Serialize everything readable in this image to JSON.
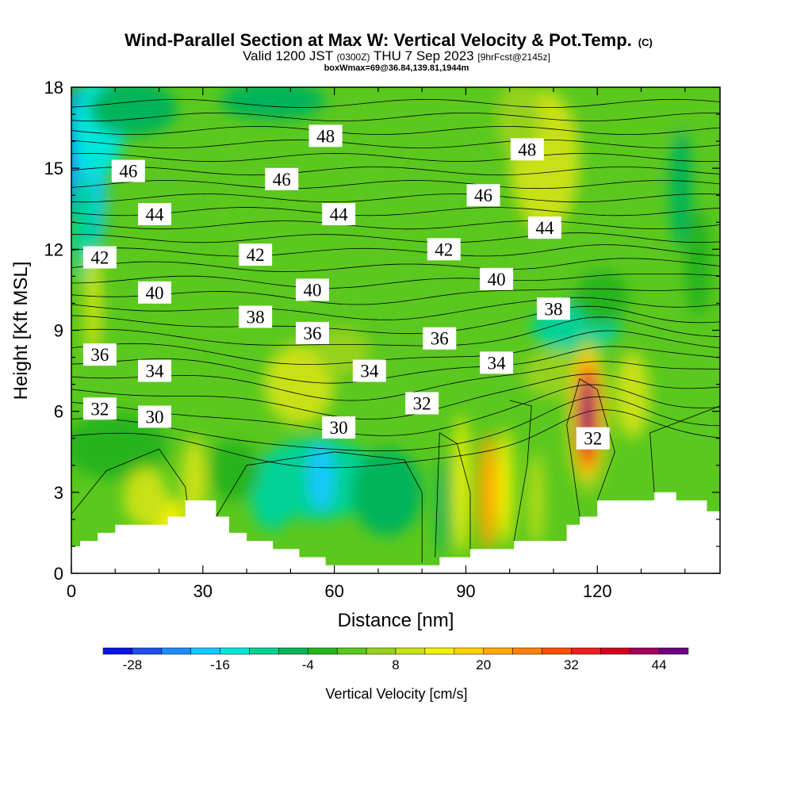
{
  "title": "Wind-Parallel Section at Max W: Vertical Velocity & Pot.Temp.",
  "title_mark": "(C)",
  "subtitle_parts": [
    "Valid 1200 JST",
    "(0300Z)",
    "THU 7 Sep 2023",
    "[9hrFcst@2145z]"
  ],
  "subtitle2": "boxWmax=69@36.84,139.81,1944m",
  "chart_data": {
    "type": "heatmap",
    "title": "Wind-Parallel Section at Max W: Vertical Velocity & Pot.Temp.",
    "xlabel": "Distance [nm]",
    "ylabel": "Height [Kft MSL]",
    "xlim": [
      0,
      148
    ],
    "ylim": [
      0,
      18
    ],
    "x_ticks": [
      0,
      30,
      60,
      90,
      120
    ],
    "y_ticks": [
      0,
      3,
      6,
      9,
      12,
      15,
      18
    ],
    "fill_variable": "Vertical Velocity [cm/s]",
    "colorbar": {
      "label": "Vertical Velocity [cm/s]",
      "min": -32,
      "step": 4,
      "tick_labels": [
        "-28",
        "-16",
        "-4",
        "8",
        "20",
        "32",
        "44"
      ],
      "tick_values": [
        -28,
        -16,
        -4,
        8,
        20,
        32,
        44
      ],
      "colors": [
        "#0a14e6",
        "#1e50f0",
        "#1e8cf5",
        "#14c8fa",
        "#00e6dc",
        "#00d296",
        "#00b45a",
        "#28b41e",
        "#5ac81e",
        "#96d21e",
        "#c8e114",
        "#f0f000",
        "#ffd200",
        "#ffaa00",
        "#ff8200",
        "#ff5000",
        "#f01e1e",
        "#d2001e",
        "#a0005a",
        "#6e007d"
      ]
    },
    "contour_variable": "Potential temperature",
    "contour_labels": [
      {
        "text": "48",
        "x": 58,
        "y": 16.2
      },
      {
        "text": "48",
        "x": 104,
        "y": 15.7
      },
      {
        "text": "46",
        "x": 13,
        "y": 14.9
      },
      {
        "text": "46",
        "x": 48,
        "y": 14.6
      },
      {
        "text": "46",
        "x": 94,
        "y": 14.0
      },
      {
        "text": "44",
        "x": 19,
        "y": 13.3
      },
      {
        "text": "44",
        "x": 61,
        "y": 13.3
      },
      {
        "text": "44",
        "x": 108,
        "y": 12.8
      },
      {
        "text": "42",
        "x": 6.5,
        "y": 11.7
      },
      {
        "text": "42",
        "x": 42,
        "y": 11.8
      },
      {
        "text": "42",
        "x": 85,
        "y": 12.0
      },
      {
        "text": "40",
        "x": 19,
        "y": 10.4
      },
      {
        "text": "40",
        "x": 55,
        "y": 10.5
      },
      {
        "text": "40",
        "x": 97,
        "y": 10.9
      },
      {
        "text": "38",
        "x": 42,
        "y": 9.5
      },
      {
        "text": "38",
        "x": 110,
        "y": 9.8
      },
      {
        "text": "36",
        "x": 6.5,
        "y": 8.1
      },
      {
        "text": "36",
        "x": 55,
        "y": 8.9
      },
      {
        "text": "36",
        "x": 84,
        "y": 8.7
      },
      {
        "text": "34",
        "x": 19,
        "y": 7.5
      },
      {
        "text": "34",
        "x": 68,
        "y": 7.5
      },
      {
        "text": "34",
        "x": 97,
        "y": 7.8
      },
      {
        "text": "32",
        "x": 6.5,
        "y": 6.1
      },
      {
        "text": "32",
        "x": 80,
        "y": 6.3
      },
      {
        "text": "32",
        "x": 119,
        "y": 5.0
      },
      {
        "text": "30",
        "x": 19,
        "y": 5.8
      },
      {
        "text": "30",
        "x": 61,
        "y": 5.4
      }
    ],
    "terrain_kft": [
      [
        0,
        1
      ],
      [
        2,
        1
      ],
      [
        2,
        1.2
      ],
      [
        6,
        1.2
      ],
      [
        6,
        1.5
      ],
      [
        10,
        1.5
      ],
      [
        10,
        1.8
      ],
      [
        22,
        1.8
      ],
      [
        22,
        2.1
      ],
      [
        26,
        2.1
      ],
      [
        26,
        2.7
      ],
      [
        33,
        2.7
      ],
      [
        33,
        2.1
      ],
      [
        36,
        2.1
      ],
      [
        36,
        1.5
      ],
      [
        40,
        1.5
      ],
      [
        40,
        1.2
      ],
      [
        46,
        1.2
      ],
      [
        46,
        0.9
      ],
      [
        52,
        0.9
      ],
      [
        52,
        0.6
      ],
      [
        58,
        0.6
      ],
      [
        58,
        0.3
      ],
      [
        84,
        0.3
      ],
      [
        84,
        0.6
      ],
      [
        91,
        0.6
      ],
      [
        91,
        0.9
      ],
      [
        101,
        0.9
      ],
      [
        101,
        1.2
      ],
      [
        113,
        1.2
      ],
      [
        113,
        1.8
      ],
      [
        116,
        1.8
      ],
      [
        116,
        2.1
      ],
      [
        120,
        2.1
      ],
      [
        120,
        2.7
      ],
      [
        133,
        2.7
      ],
      [
        133,
        3
      ],
      [
        138,
        3
      ],
      [
        138,
        2.7
      ],
      [
        145,
        2.7
      ],
      [
        145,
        2.3
      ],
      [
        148,
        2.3
      ]
    ],
    "grid": false
  }
}
